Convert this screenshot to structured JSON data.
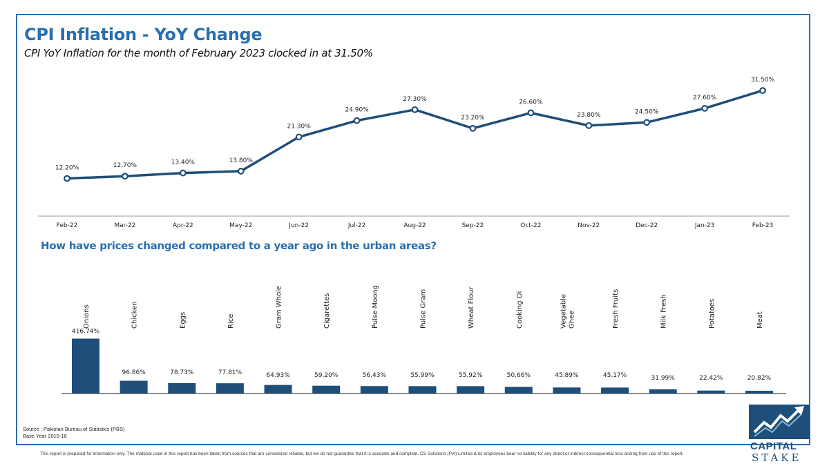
{
  "header": {
    "title": "CPI Inflation - YoY Change",
    "subtitle": "CPI YoY Inflation for the month of February 2023 clocked in at 31.50%"
  },
  "section_question": "How have prices changed compared to a year ago in the urban areas?",
  "footer": {
    "source_line1": "Source : Pakistan Bureau of Statistics (PBS)",
    "source_line2": "Base Year 2015-16",
    "disclaimer": "This report is prepared for information only. The material used in this report has been taken from sources that are considered reliable, but we do not guarantee that it is accurate and complete. CS Solutions (Pvt) Limited & its employees bear no liability for any direct or indirect consequential loss arising from use of this report."
  },
  "logo": {
    "word1": "CAPITAL",
    "word2": "STAKE",
    "icon": "chart-trend-icon",
    "color": "#1d4f7a"
  },
  "colors": {
    "accent": "#2a6fae",
    "series": "#1f4e79",
    "bar": "#1f4e79"
  },
  "chart_data": [
    {
      "type": "line",
      "categories": [
        "Feb-22",
        "Mar-22",
        "Apr-22",
        "May-22",
        "Jun-22",
        "Jul-22",
        "Aug-22",
        "Sep-22",
        "Oct-22",
        "Nov-22",
        "Dec-22",
        "Jan-23",
        "Feb-23"
      ],
      "values": [
        12.2,
        12.7,
        13.4,
        13.8,
        21.3,
        24.9,
        27.3,
        23.2,
        26.6,
        23.8,
        24.5,
        27.6,
        31.5
      ],
      "labels": [
        "12.20%",
        "12.70%",
        "13.40%",
        "13.80%",
        "21.30%",
        "24.90%",
        "27.30%",
        "23.20%",
        "26.60%",
        "23.80%",
        "24.50%",
        "27.60%",
        "31.50%"
      ],
      "grid": false,
      "legend": "none"
    },
    {
      "type": "bar",
      "categories": [
        "Onions",
        "Chicken",
        "Eggs",
        "Rice",
        "Gram Whole",
        "Cigarettes",
        "Pulse Moong",
        "Pulse Gram",
        "Wheat Flour",
        "Cooking Oi",
        "Vegetable Ghee",
        "Fresh Fruits",
        "Milk Fresh",
        "Potatoes",
        "Meat"
      ],
      "values": [
        416.74,
        96.86,
        78.73,
        77.81,
        64.93,
        59.2,
        56.43,
        55.99,
        55.92,
        50.66,
        45.89,
        45.17,
        31.99,
        22.42,
        20.82
      ],
      "labels": [
        "416.74%",
        "96.86%",
        "78.73%",
        "77.81%",
        "64.93%",
        "59.20%",
        "56.43%",
        "55.99%",
        "55.92%",
        "50.66%",
        "45.89%",
        "45.17%",
        "31.99%",
        "22.42%",
        "20.82%"
      ],
      "grid": false,
      "legend": "none"
    }
  ]
}
